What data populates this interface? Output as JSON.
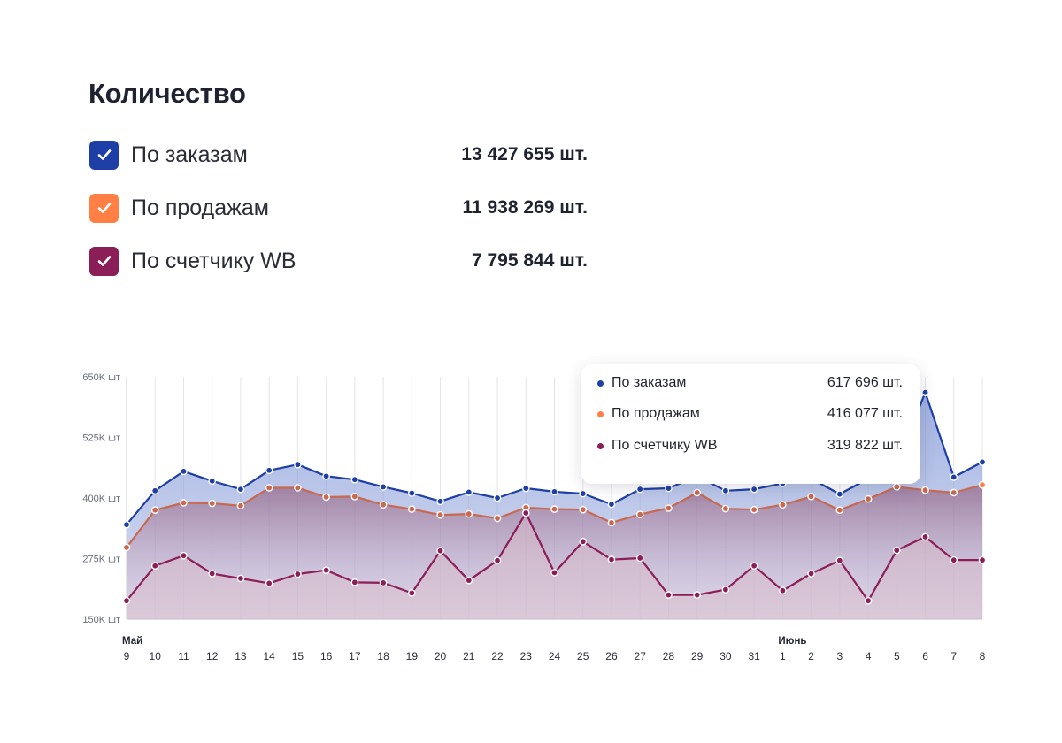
{
  "title": "Количество",
  "legend": [
    {
      "label": "По заказам",
      "total": "13 427 655 шт.",
      "color": "#1d3fa6",
      "checked": true
    },
    {
      "label": "По продажам",
      "total": "11 938 269 шт.",
      "color": "#ff7f45",
      "checked": true
    },
    {
      "label": "По счетчику WB",
      "total": "7 795 844 шт.",
      "color": "#8c1e57",
      "checked": true
    }
  ],
  "tooltip": {
    "rows": [
      {
        "label": "По заказам",
        "value": "617 696 шт.",
        "color": "#1d3fa6"
      },
      {
        "label": "По продажам",
        "value": "416 077 шт.",
        "color": "#ff7f45"
      },
      {
        "label": "По счетчику WB",
        "value": "319 822 шт.",
        "color": "#8c1e57"
      }
    ]
  },
  "chart_data": {
    "type": "area",
    "categories": [
      "9",
      "10",
      "11",
      "12",
      "13",
      "14",
      "15",
      "16",
      "17",
      "18",
      "19",
      "20",
      "21",
      "22",
      "23",
      "24",
      "25",
      "26",
      "27",
      "28",
      "29",
      "30",
      "31",
      "1",
      "2",
      "3",
      "4",
      "5",
      "6",
      "7",
      "8"
    ],
    "month_labels": [
      {
        "index": 0,
        "label": "Май"
      },
      {
        "index": 23,
        "label": "Июнь"
      }
    ],
    "y_ticks": [
      {
        "value": 650000,
        "label": "650K шт"
      },
      {
        "value": 525000,
        "label": "525K шт"
      },
      {
        "value": 400000,
        "label": "400K шт"
      },
      {
        "value": 275000,
        "label": "275K шт"
      },
      {
        "value": 150000,
        "label": "150K шт"
      }
    ],
    "ylim": [
      150000,
      650000
    ],
    "series": [
      {
        "name": "По заказам",
        "color": "#1d3fa6",
        "values": [
          345000,
          415000,
          455000,
          435000,
          418000,
          457000,
          469000,
          445000,
          438000,
          423000,
          410000,
          393000,
          412000,
          400000,
          420000,
          413000,
          409000,
          387000,
          418000,
          420000,
          445000,
          415000,
          418000,
          430000,
          440000,
          408000,
          440000,
          470000,
          617696,
          443000,
          474000
        ]
      },
      {
        "name": "По продажам",
        "color": "#ff7f45",
        "values": [
          298000,
          375000,
          390000,
          389000,
          384000,
          421000,
          421000,
          402000,
          403000,
          386000,
          377000,
          365000,
          367000,
          358000,
          380000,
          377000,
          376000,
          349000,
          366000,
          379000,
          411000,
          378000,
          376000,
          386000,
          403000,
          375000,
          398000,
          423000,
          416077,
          411000,
          427000
        ]
      },
      {
        "name": "По счетчику WB",
        "color": "#8c1e57",
        "values": [
          188000,
          260000,
          281000,
          244000,
          234000,
          224000,
          243000,
          251000,
          226000,
          225000,
          204000,
          291000,
          230000,
          271000,
          369000,
          246000,
          310000,
          273000,
          276000,
          200000,
          200000,
          211000,
          260000,
          209000,
          244000,
          271000,
          188000,
          292000,
          319822,
          272000,
          272000
        ]
      }
    ]
  }
}
